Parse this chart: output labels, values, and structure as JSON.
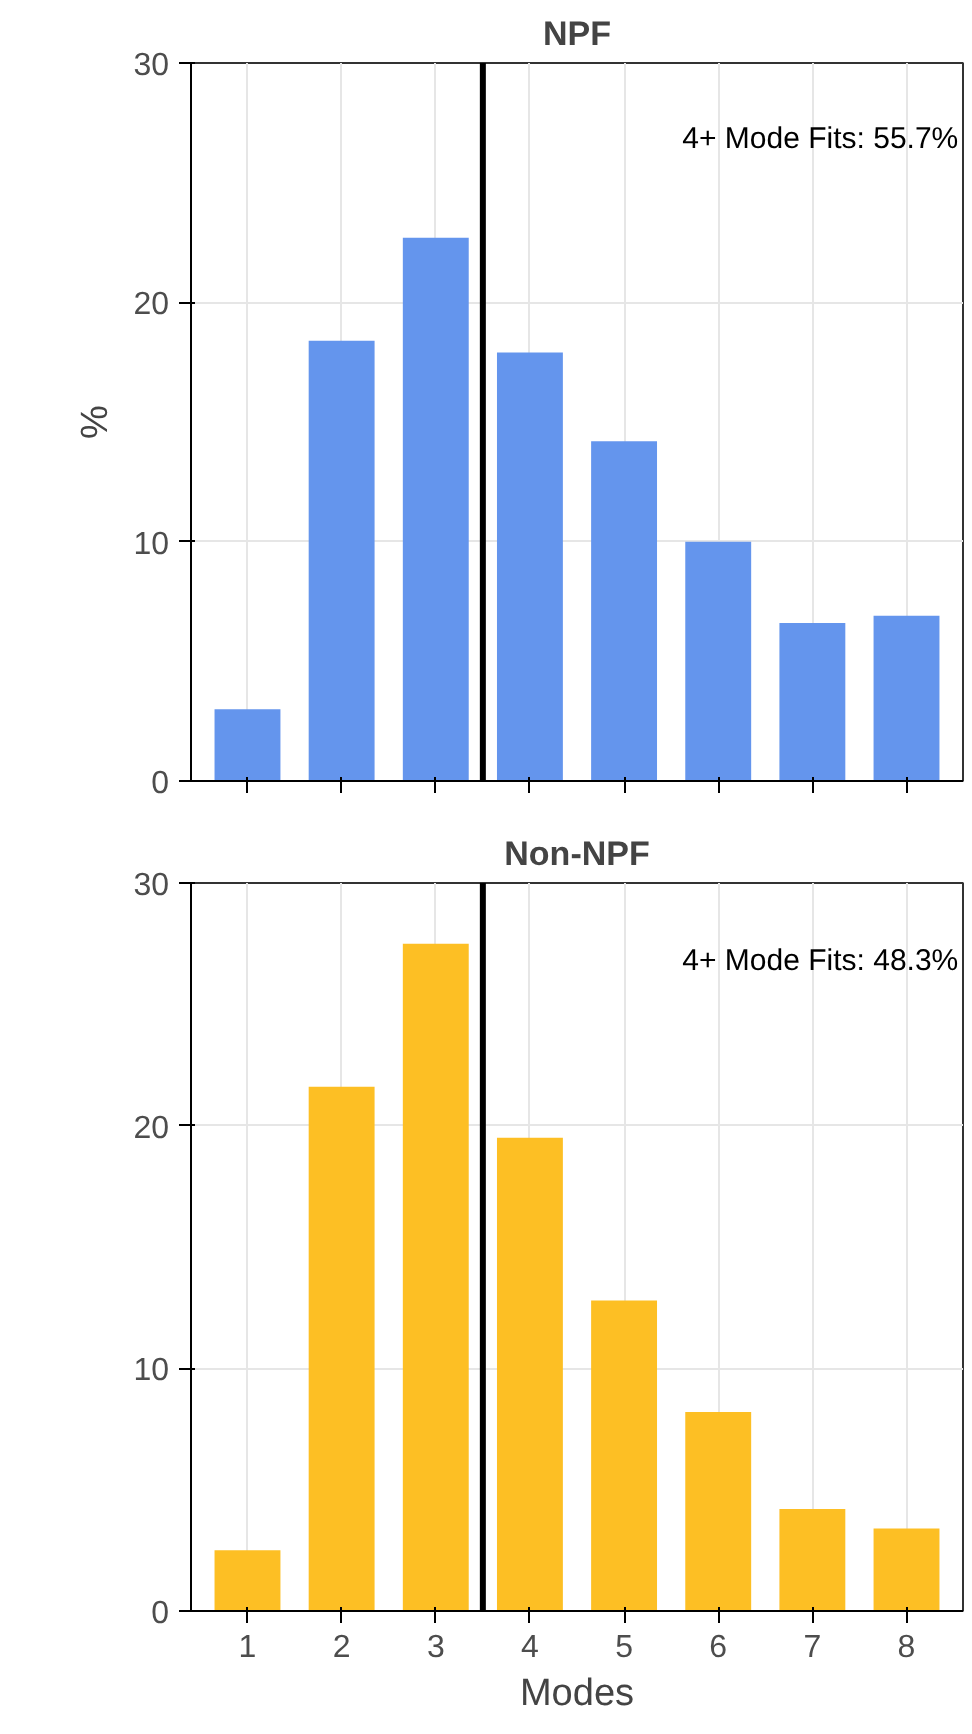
{
  "chart_data": [
    {
      "type": "bar",
      "title": "NPF",
      "ylabel": "%",
      "x": [
        1,
        2,
        3,
        4,
        5,
        6,
        7,
        8
      ],
      "xlim": [
        0.4,
        8.6
      ],
      "xticks": [
        1,
        2,
        3,
        4,
        5,
        6,
        7,
        8
      ],
      "color": "#6495ed",
      "values": [
        3.0,
        18.4,
        22.7,
        17.9,
        14.2,
        10.0,
        6.6,
        6.9
      ],
      "ylim": [
        0,
        30
      ],
      "yticks": [
        0,
        10,
        20,
        30
      ],
      "grid": true,
      "tick_labels": "y",
      "ref_lines": [
        {
          "axis": "x",
          "value": 3.5,
          "label": null,
          "color": "#000000"
        }
      ],
      "annotations": [
        "4+ Mode Fits: 55.7%"
      ]
    },
    {
      "type": "bar",
      "title": "Non-NPF",
      "xlabel": "Modes",
      "x": [
        1,
        2,
        3,
        4,
        5,
        6,
        7,
        8
      ],
      "xlim": [
        0.4,
        8.6
      ],
      "xticks": [
        1,
        2,
        3,
        4,
        5,
        6,
        7,
        8
      ],
      "color": "#fdbf24",
      "values": [
        2.5,
        21.6,
        27.5,
        19.5,
        12.8,
        8.2,
        4.2,
        3.4
      ],
      "ylim": [
        0,
        30
      ],
      "yticks": [
        0,
        10,
        20,
        30
      ],
      "grid": true,
      "ref_lines": [
        {
          "axis": "x",
          "value": 3.5,
          "label": null,
          "color": "#000000"
        }
      ],
      "annotations": [
        "4+ Mode Fits: 48.3%"
      ]
    }
  ]
}
